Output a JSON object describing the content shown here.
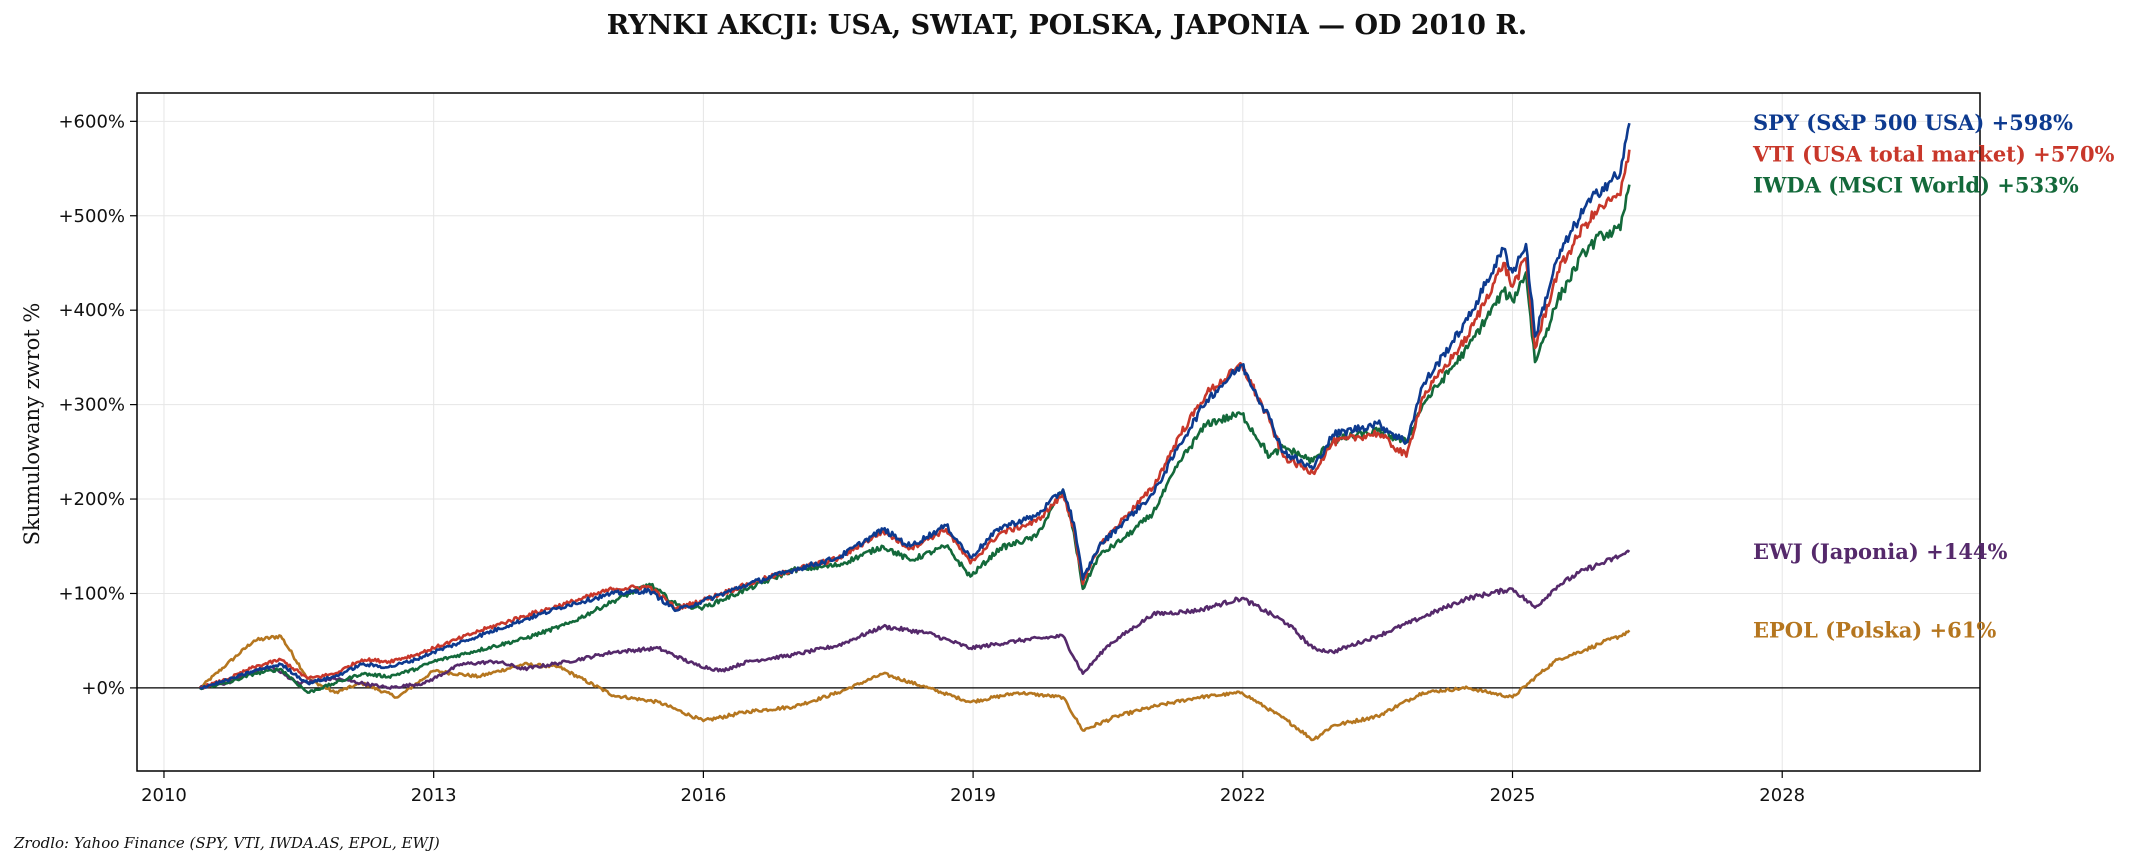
{
  "chart_data": {
    "type": "line",
    "title": "RYNKI AKCJI: USA, SWIAT, POLSKA, JAPONIA — OD 2010 R.",
    "ylabel": "Skumulowany zwrot %",
    "xlabel": "",
    "source": "Zrodlo: Yahoo Finance (SPY, VTI, IWDA.AS, EPOL, EWJ)",
    "xlim": [
      2009.7,
      2030.2
    ],
    "ylim": [
      -88,
      630
    ],
    "x_ticks": [
      2010,
      2013,
      2016,
      2019,
      2022,
      2025,
      2028
    ],
    "x_tick_labels": [
      "2010",
      "2013",
      "2016",
      "2019",
      "2022",
      "2025",
      "2028"
    ],
    "y_ticks": [
      0,
      100,
      200,
      300,
      400,
      500,
      600
    ],
    "y_tick_labels": [
      "+0%",
      "+100%",
      "+200%",
      "+300%",
      "+400%",
      "+500%",
      "+600%"
    ],
    "grid": true,
    "zero_line": true,
    "legend": "right-side labels",
    "series": [
      {
        "name": "SPY (S&P 500 USA)",
        "final_label": "+598%",
        "color": "#0d3a8f",
        "label_value": 598,
        "x": [
          2010.4,
          2010.7,
          2011.0,
          2011.3,
          2011.6,
          2011.9,
          2012.2,
          2012.5,
          2012.8,
          2013.0,
          2013.5,
          2014.0,
          2014.5,
          2015.0,
          2015.4,
          2015.7,
          2016.0,
          2016.5,
          2017.0,
          2017.5,
          2018.0,
          2018.3,
          2018.7,
          2018.97,
          2019.3,
          2019.7,
          2020.0,
          2020.12,
          2020.22,
          2020.4,
          2020.7,
          2021.0,
          2021.3,
          2021.6,
          2021.99,
          2022.3,
          2022.45,
          2022.78,
          2023.0,
          2023.5,
          2023.82,
          2024.0,
          2024.5,
          2024.9,
          2025.0,
          2025.15,
          2025.25,
          2025.5,
          2025.8,
          2026.0,
          2026.2,
          2026.3
        ],
        "y": [
          0,
          8,
          18,
          25,
          5,
          12,
          25,
          22,
          30,
          38,
          55,
          72,
          88,
          100,
          103,
          82,
          92,
          110,
          125,
          138,
          168,
          150,
          172,
          138,
          170,
          182,
          210,
          175,
          115,
          150,
          178,
          205,
          258,
          305,
          342,
          285,
          250,
          232,
          268,
          280,
          260,
          320,
          390,
          465,
          440,
          470,
          372,
          455,
          508,
          530,
          545,
          598
        ]
      },
      {
        "name": "VTI (USA total market)",
        "final_label": "+570%",
        "color": "#c8372a",
        "label_value": 565,
        "x": [
          2010.4,
          2010.7,
          2011.0,
          2011.3,
          2011.6,
          2011.9,
          2012.2,
          2012.5,
          2012.8,
          2013.0,
          2013.5,
          2014.0,
          2014.5,
          2015.0,
          2015.4,
          2015.7,
          2016.0,
          2016.5,
          2017.0,
          2017.5,
          2018.0,
          2018.3,
          2018.7,
          2018.97,
          2019.3,
          2019.7,
          2020.0,
          2020.12,
          2020.22,
          2020.4,
          2020.7,
          2021.0,
          2021.3,
          2021.6,
          2021.99,
          2022.3,
          2022.45,
          2022.78,
          2023.0,
          2023.5,
          2023.82,
          2024.0,
          2024.5,
          2024.9,
          2025.0,
          2025.15,
          2025.25,
          2025.5,
          2025.8,
          2026.0,
          2026.2,
          2026.3
        ],
        "y": [
          0,
          9,
          22,
          30,
          10,
          15,
          30,
          28,
          35,
          42,
          60,
          76,
          90,
          105,
          107,
          84,
          93,
          110,
          125,
          137,
          166,
          148,
          168,
          132,
          164,
          176,
          205,
          170,
          110,
          150,
          182,
          212,
          268,
          312,
          342,
          282,
          245,
          228,
          260,
          270,
          245,
          308,
          372,
          450,
          425,
          455,
          360,
          440,
          490,
          510,
          522,
          570
        ]
      },
      {
        "name": "IWDA (MSCI World)",
        "final_label": "+533%",
        "color": "#13693a",
        "label_value": 532,
        "x": [
          2010.4,
          2010.7,
          2011.0,
          2011.3,
          2011.6,
          2011.9,
          2012.2,
          2012.5,
          2012.8,
          2013.0,
          2013.5,
          2014.0,
          2014.5,
          2015.0,
          2015.4,
          2015.7,
          2016.0,
          2016.5,
          2017.0,
          2017.5,
          2018.0,
          2018.3,
          2018.7,
          2018.97,
          2019.3,
          2019.7,
          2020.0,
          2020.12,
          2020.22,
          2020.4,
          2020.7,
          2021.0,
          2021.3,
          2021.6,
          2021.99,
          2022.3,
          2022.45,
          2022.78,
          2023.0,
          2023.5,
          2023.82,
          2024.0,
          2024.5,
          2024.9,
          2025.0,
          2025.15,
          2025.25,
          2025.5,
          2025.8,
          2026.0,
          2026.2,
          2026.3
        ],
        "y": [
          0,
          5,
          15,
          20,
          -5,
          5,
          15,
          12,
          20,
          28,
          40,
          52,
          68,
          92,
          110,
          88,
          85,
          105,
          125,
          130,
          150,
          135,
          150,
          118,
          148,
          160,
          210,
          165,
          105,
          140,
          160,
          185,
          240,
          280,
          290,
          245,
          255,
          240,
          262,
          272,
          260,
          300,
          360,
          420,
          410,
          440,
          345,
          410,
          462,
          480,
          485,
          533
        ]
      },
      {
        "name": "EWJ (Japonia)",
        "final_label": "+144%",
        "color": "#55296b",
        "label_value": 144,
        "x": [
          2010.4,
          2010.7,
          2011.0,
          2011.2,
          2011.5,
          2011.9,
          2012.5,
          2012.9,
          2013.3,
          2013.7,
          2014.0,
          2014.5,
          2015.0,
          2015.5,
          2015.9,
          2016.2,
          2016.5,
          2017.0,
          2017.5,
          2018.0,
          2018.5,
          2018.97,
          2019.5,
          2020.0,
          2020.22,
          2020.5,
          2021.0,
          2021.5,
          2021.99,
          2022.5,
          2022.78,
          2023.0,
          2023.5,
          2024.0,
          2024.5,
          2025.0,
          2025.25,
          2025.5,
          2025.8,
          2026.0,
          2026.2,
          2026.3
        ],
        "y": [
          0,
          5,
          18,
          22,
          5,
          10,
          0,
          5,
          25,
          28,
          20,
          28,
          38,
          42,
          25,
          18,
          28,
          35,
          45,
          65,
          58,
          42,
          50,
          55,
          15,
          45,
          78,
          82,
          95,
          68,
          42,
          38,
          55,
          75,
          95,
          105,
          85,
          108,
          125,
          132,
          140,
          144
        ]
      },
      {
        "name": "EPOL (Polska)",
        "final_label": "+61%",
        "color": "#b5761f",
        "label_value": 61,
        "x": [
          2010.4,
          2010.7,
          2011.0,
          2011.3,
          2011.6,
          2011.9,
          2012.2,
          2012.6,
          2013.0,
          2013.5,
          2014.0,
          2014.4,
          2015.0,
          2015.5,
          2016.0,
          2016.5,
          2017.0,
          2017.5,
          2018.0,
          2018.5,
          2018.97,
          2019.5,
          2020.0,
          2020.22,
          2020.6,
          2021.0,
          2021.5,
          2021.99,
          2022.5,
          2022.78,
          2023.0,
          2023.5,
          2024.0,
          2024.5,
          2025.0,
          2025.3,
          2025.5,
          2025.8,
          2026.0,
          2026.2,
          2026.3
        ],
        "y": [
          0,
          25,
          50,
          55,
          10,
          -5,
          5,
          -10,
          18,
          12,
          25,
          22,
          -8,
          -15,
          -35,
          -25,
          -20,
          -5,
          15,
          0,
          -15,
          -5,
          -10,
          -45,
          -30,
          -20,
          -10,
          -5,
          -35,
          -55,
          -40,
          -30,
          -5,
          0,
          -10,
          15,
          30,
          40,
          48,
          55,
          61
        ]
      }
    ]
  }
}
